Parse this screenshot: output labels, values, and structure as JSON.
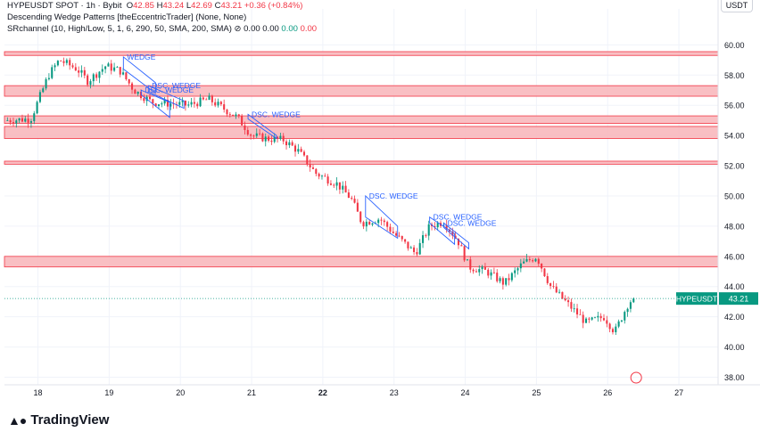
{
  "header": {
    "title": "HYPEUSDT SPOT · 1h · Bybit",
    "ohlc": {
      "o_label": "O",
      "o": "42.85",
      "h_label": "H",
      "h": "43.24",
      "l_label": "L",
      "l": "42.69",
      "c_label": "C",
      "c": "43.21",
      "change": "+0.36 (+0.84%)"
    },
    "indicator1": "Descending Wedge Patterns [theEccentricTrader] (None, None)",
    "indicator2": "SRchannel (10, High/Low, 5, 1, 6, 290, 50, SMA, 200, SMA)",
    "indicator2_values": [
      "0.00",
      "0.00",
      "0.00",
      "0.00"
    ]
  },
  "currency_button": "USDT",
  "brand": "TradingView",
  "colors": {
    "up": "#089981",
    "down": "#f23645",
    "zone_fill": "#f8b8bd",
    "zone_stroke": "#f23645",
    "wedge": "#2962ff",
    "price_tag": "#089981"
  },
  "chart_data": {
    "type": "candlestick",
    "symbol": "HYPEUSDT",
    "last_price": 43.21,
    "ylim": [
      37.5,
      61.2
    ],
    "y_ticks": [
      "60.00",
      "58.00",
      "56.00",
      "54.00",
      "52.00",
      "50.00",
      "48.00",
      "46.00",
      "44.00",
      "42.00",
      "40.00",
      "38.00"
    ],
    "x_ticks": [
      {
        "label": "18",
        "pos": 0.0
      },
      {
        "label": "19",
        "pos": 1.0
      },
      {
        "label": "20",
        "pos": 2.0
      },
      {
        "label": "21",
        "pos": 3.0
      },
      {
        "label": "22",
        "pos": 4.0,
        "bold": true
      },
      {
        "label": "23",
        "pos": 5.0
      },
      {
        "label": "24",
        "pos": 6.0
      },
      {
        "label": "25",
        "pos": 7.0
      },
      {
        "label": "26",
        "pos": 8.0
      },
      {
        "label": "27",
        "pos": 9.0
      }
    ],
    "x_range": [
      -0.47,
      9.55
    ],
    "anchors": [
      [
        -0.47,
        55.0
      ],
      [
        -0.1,
        55.1
      ],
      [
        0.15,
        58.0
      ],
      [
        0.3,
        59.0
      ],
      [
        0.55,
        58.4
      ],
      [
        0.7,
        57.6
      ],
      [
        0.95,
        58.6
      ],
      [
        1.15,
        58.3
      ],
      [
        1.35,
        57.0
      ],
      [
        1.6,
        56.2
      ],
      [
        1.9,
        56.1
      ],
      [
        2.1,
        56.0
      ],
      [
        2.4,
        56.4
      ],
      [
        2.6,
        55.8
      ],
      [
        2.8,
        55.2
      ],
      [
        3.0,
        54.0
      ],
      [
        3.2,
        53.8
      ],
      [
        3.45,
        53.7
      ],
      [
        3.65,
        53.0
      ],
      [
        3.9,
        51.5
      ],
      [
        4.2,
        50.8
      ],
      [
        4.4,
        49.8
      ],
      [
        4.55,
        48.2
      ],
      [
        4.8,
        48.5
      ],
      [
        5.0,
        47.5
      ],
      [
        5.3,
        46.2
      ],
      [
        5.5,
        48.0
      ],
      [
        5.7,
        48.3
      ],
      [
        5.9,
        47.0
      ],
      [
        6.05,
        45.3
      ],
      [
        6.3,
        45.0
      ],
      [
        6.55,
        44.2
      ],
      [
        6.8,
        45.5
      ],
      [
        7.0,
        46.0
      ],
      [
        7.2,
        44.0
      ],
      [
        7.45,
        42.8
      ],
      [
        7.7,
        41.6
      ],
      [
        7.95,
        42.0
      ],
      [
        8.1,
        41.0
      ],
      [
        8.3,
        43.0
      ],
      [
        8.4,
        43.21
      ]
    ],
    "sr_zones": [
      {
        "low": 59.3,
        "high": 59.55
      },
      {
        "low": 56.6,
        "high": 57.3
      },
      {
        "low": 54.8,
        "high": 55.3
      },
      {
        "low": 53.8,
        "high": 54.6
      },
      {
        "low": 52.1,
        "high": 52.3
      },
      {
        "low": 45.3,
        "high": 46.0
      }
    ],
    "wedges": [
      {
        "label": "WEDGE",
        "x": [
          1.2,
          1.65
        ],
        "top": [
          59.2,
          57.5
        ],
        "bottom": [
          58.4,
          56.8
        ]
      },
      {
        "label": "DSC. WEDGE",
        "x": [
          1.55,
          2.05
        ],
        "top": [
          57.3,
          56.3
        ],
        "bottom": [
          56.9,
          55.8
        ]
      },
      {
        "label": "DSC. WEDGE",
        "x": [
          1.45,
          1.85
        ],
        "top": [
          57.0,
          56.2
        ],
        "bottom": [
          56.7,
          55.2
        ]
      },
      {
        "label": "DSC. WEDGE",
        "x": [
          2.95,
          3.35
        ],
        "top": [
          55.4,
          54.0
        ],
        "bottom": [
          55.1,
          53.8
        ]
      },
      {
        "label": "DSC. WEDGE",
        "x": [
          4.6,
          5.05
        ],
        "top": [
          50.0,
          48.0
        ],
        "bottom": [
          48.6,
          47.2
        ]
      },
      {
        "label": "DSC. WEDGE",
        "x": [
          5.5,
          5.85
        ],
        "top": [
          48.6,
          47.5
        ],
        "bottom": [
          48.2,
          46.8
        ]
      },
      {
        "label": "DSC. WEDGE",
        "x": [
          5.7,
          6.05
        ],
        "top": [
          48.2,
          46.9
        ],
        "bottom": [
          47.9,
          46.5
        ]
      }
    ]
  }
}
